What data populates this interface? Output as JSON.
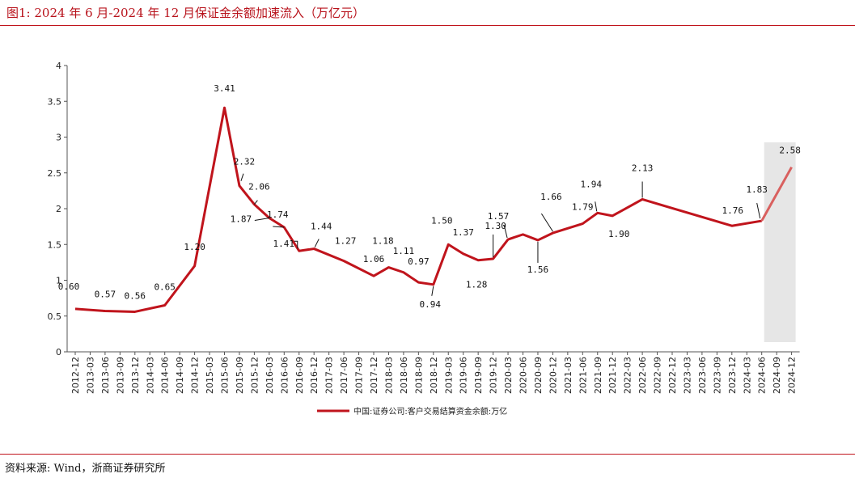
{
  "header": {
    "title": "图1:  2024 年 6 月-2024 年 12 月保证金余额加速流入（万亿元）"
  },
  "footer": {
    "source": "资料来源:  Wind，浙商证券研究所"
  },
  "colors": {
    "accent": "#c0141c",
    "highlight_band": "#e6e6e6",
    "projection_line": "#d9605f"
  },
  "chart_data": {
    "type": "line",
    "title": "",
    "xlabel": "",
    "ylabel": "",
    "ylim": [
      0,
      4
    ],
    "yticks": [
      "0",
      "0.5",
      "1",
      "1.5",
      "2",
      "2.5",
      "3",
      "3.5",
      "4"
    ],
    "grid": false,
    "legend_position": "bottom",
    "highlight_range": [
      "2024-06",
      "2024-12"
    ],
    "categories": [
      "2012-12",
      "2013-03",
      "2013-06",
      "2013-09",
      "2013-12",
      "2014-03",
      "2014-06",
      "2014-09",
      "2014-12",
      "2015-03",
      "2015-06",
      "2015-09",
      "2015-12",
      "2016-03",
      "2016-06",
      "2016-09",
      "2016-12",
      "2017-03",
      "2017-06",
      "2017-09",
      "2017-12",
      "2018-03",
      "2018-06",
      "2018-09",
      "2018-12",
      "2019-03",
      "2019-06",
      "2019-09",
      "2019-12",
      "2020-03",
      "2020-06",
      "2020-09",
      "2020-12",
      "2021-03",
      "2021-06",
      "2021-09",
      "2021-12",
      "2022-03",
      "2022-06",
      "2022-09",
      "2022-12",
      "2023-03",
      "2023-06",
      "2023-09",
      "2023-12",
      "2024-03",
      "2024-06",
      "2024-09",
      "2024-12"
    ],
    "series": [
      {
        "name": "中国:证券公司:客户交易结算资金余额:万亿",
        "points": [
          {
            "x": "2012-12",
            "y": 0.6
          },
          {
            "x": "2013-06",
            "y": 0.57
          },
          {
            "x": "2013-12",
            "y": 0.56
          },
          {
            "x": "2014-06",
            "y": 0.65
          },
          {
            "x": "2014-12",
            "y": 1.2
          },
          {
            "x": "2015-06",
            "y": 3.41
          },
          {
            "x": "2015-09",
            "y": 2.32
          },
          {
            "x": "2015-12",
            "y": 2.06
          },
          {
            "x": "2016-03",
            "y": 1.87
          },
          {
            "x": "2016-06",
            "y": 1.74
          },
          {
            "x": "2016-09",
            "y": 1.41
          },
          {
            "x": "2016-12",
            "y": 1.44
          },
          {
            "x": "2017-06",
            "y": 1.27
          },
          {
            "x": "2017-12",
            "y": 1.06
          },
          {
            "x": "2018-03",
            "y": 1.18
          },
          {
            "x": "2018-06",
            "y": 1.11
          },
          {
            "x": "2018-09",
            "y": 0.97
          },
          {
            "x": "2018-12",
            "y": 0.94
          },
          {
            "x": "2019-03",
            "y": 1.5
          },
          {
            "x": "2019-06",
            "y": 1.37
          },
          {
            "x": "2019-09",
            "y": 1.28
          },
          {
            "x": "2019-12",
            "y": 1.3
          },
          {
            "x": "2020-03",
            "y": 1.57
          },
          {
            "x": "2020-06",
            "y": 1.64
          },
          {
            "x": "2020-09",
            "y": 1.56
          },
          {
            "x": "2020-12",
            "y": 1.66
          },
          {
            "x": "2021-06",
            "y": 1.79
          },
          {
            "x": "2021-09",
            "y": 1.94
          },
          {
            "x": "2021-12",
            "y": 1.9
          },
          {
            "x": "2022-06",
            "y": 2.13
          },
          {
            "x": "2023-12",
            "y": 1.76
          },
          {
            "x": "2024-06",
            "y": 1.83
          },
          {
            "x": "2024-12",
            "y": 2.58
          }
        ]
      }
    ],
    "data_labels": [
      {
        "x": "2012-12",
        "text": "0.60"
      },
      {
        "x": "2013-06",
        "text": "0.57"
      },
      {
        "x": "2013-12",
        "text": "0.56"
      },
      {
        "x": "2014-06",
        "text": "0.65"
      },
      {
        "x": "2014-12",
        "text": "1.20"
      },
      {
        "x": "2015-06",
        "text": "3.41"
      },
      {
        "x": "2015-09",
        "text": "2.32"
      },
      {
        "x": "2015-12",
        "text": "2.06"
      },
      {
        "x": "2016-03",
        "text": "1.87"
      },
      {
        "x": "2016-06",
        "text": "1.74"
      },
      {
        "x": "2016-09",
        "text": "1.41"
      },
      {
        "x": "2016-12",
        "text": "1.44"
      },
      {
        "x": "2017-06",
        "text": "1.27"
      },
      {
        "x": "2017-12",
        "text": "1.06"
      },
      {
        "x": "2018-03",
        "text": "1.18"
      },
      {
        "x": "2018-06",
        "text": "1.11"
      },
      {
        "x": "2018-09",
        "text": "0.97"
      },
      {
        "x": "2018-12",
        "text": "0.94"
      },
      {
        "x": "2019-03",
        "text": "1.50"
      },
      {
        "x": "2019-06",
        "text": "1.37"
      },
      {
        "x": "2019-09",
        "text": "1.28"
      },
      {
        "x": "2019-12",
        "text": "1.30"
      },
      {
        "x": "2020-03",
        "text": "1.57"
      },
      {
        "x": "2020-09",
        "text": "1.56"
      },
      {
        "x": "2020-12",
        "text": "1.66"
      },
      {
        "x": "2021-06",
        "text": "1.79"
      },
      {
        "x": "2021-09",
        "text": "1.94"
      },
      {
        "x": "2021-12",
        "text": "1.90"
      },
      {
        "x": "2022-06",
        "text": "2.13"
      },
      {
        "x": "2023-12",
        "text": "1.76"
      },
      {
        "x": "2024-06",
        "text": "1.83"
      },
      {
        "x": "2024-12",
        "text": "2.58"
      }
    ]
  }
}
